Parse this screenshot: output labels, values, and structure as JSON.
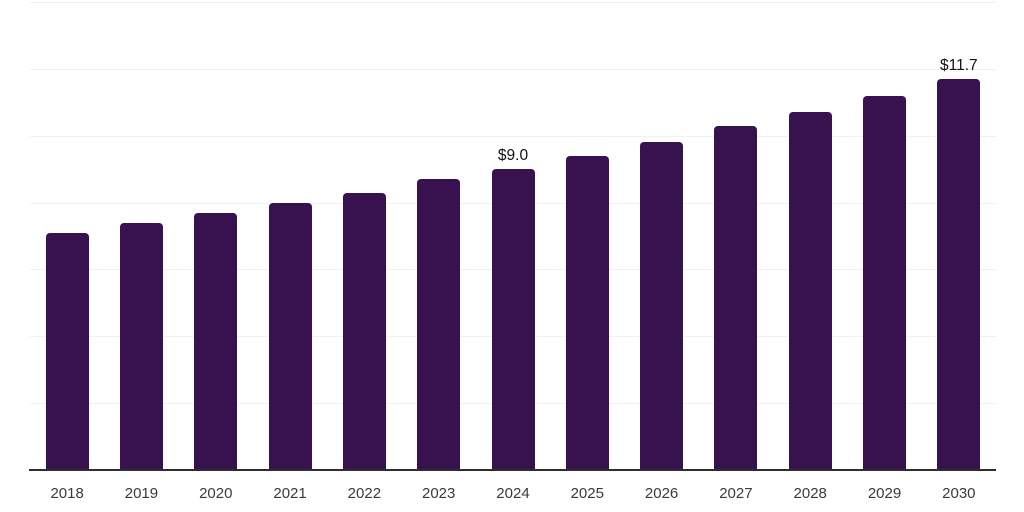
{
  "chart_data": {
    "type": "bar",
    "title": "",
    "xlabel": "",
    "ylabel": "",
    "categories": [
      "2018",
      "2019",
      "2020",
      "2021",
      "2022",
      "2023",
      "2024",
      "2025",
      "2026",
      "2027",
      "2028",
      "2029",
      "2030"
    ],
    "values": [
      7.1,
      7.4,
      7.7,
      8.0,
      8.3,
      8.7,
      9.0,
      9.4,
      9.8,
      10.3,
      10.7,
      11.2,
      11.7
    ],
    "data_labels": [
      "",
      "",
      "",
      "",
      "",
      "",
      "$9.0",
      "",
      "",
      "",
      "",
      "",
      "$11.7"
    ],
    "ylim": [
      0,
      14
    ],
    "gridline_step": 2,
    "grid_on": true,
    "legend": "none",
    "colors": {
      "bar": "#38124E",
      "gridline": "#f1f1f1",
      "axis": "#2e2e2e",
      "tick_text": "#3a3a3a",
      "label_text": "#111111",
      "background": "#ffffff"
    }
  }
}
